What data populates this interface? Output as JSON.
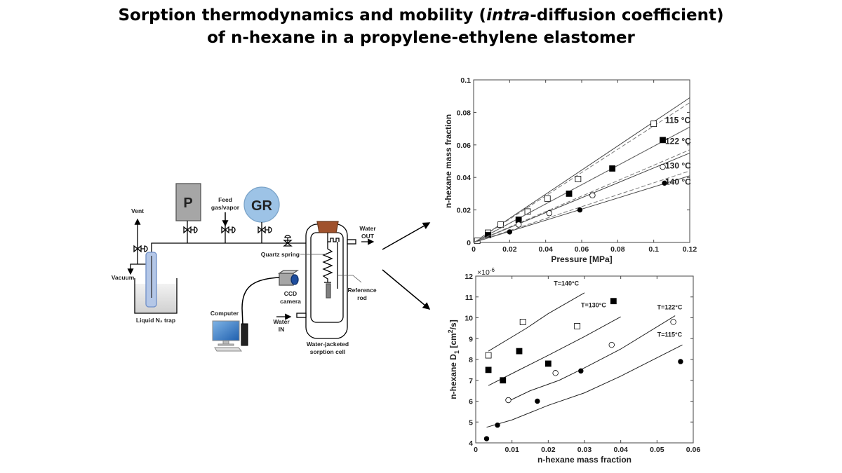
{
  "title": {
    "line1_a": "Sorption thermodynamics and mobility (",
    "line1_italic": "intra",
    "line1_b": "-diffusion coefficient)",
    "line2": "of n-hexane in a propylene-ethylene elastomer"
  },
  "diagram": {
    "pressure_box": "P",
    "gas_reservoir": "GR",
    "vent": "Vent",
    "vacuum": "Vacuum",
    "feed_line1": "Feed",
    "feed_line2": "gas/vapor",
    "trap": "Liquid N₂ trap",
    "water_out_1": "Water",
    "water_out_2": "OUT",
    "water_in_1": "Water",
    "water_in_2": "IN",
    "quartz_spring": "Quartz spring",
    "reference_1": "Reference",
    "reference_2": "rod",
    "ccd_1": "CCD",
    "ccd_2": "camera",
    "computer": "Computer",
    "cell_1": "Water-jacketed",
    "cell_2": "sorption cell",
    "colors": {
      "reservoir": "#9dc3e6",
      "pressure": "#a6a6a6",
      "cap": "#a0522d",
      "tube": "#b4c7e7"
    }
  },
  "chart_data": [
    {
      "type": "scatter",
      "xlabel": "Pressure [MPa]",
      "ylabel": "n-hexane mass fraction",
      "xlim": [
        0,
        0.12
      ],
      "ylim": [
        0,
        0.1
      ],
      "xticks": [
        "0",
        "0.02",
        "0.04",
        "0.06",
        "0.08",
        "0.1",
        "0.12"
      ],
      "yticks": [
        "0",
        "0.02",
        "0.04",
        "0.06",
        "0.08",
        "0.1"
      ],
      "grid": false,
      "series": [
        {
          "name": "115 °C",
          "marker": "open-square",
          "x": [
            0.002,
            0.008,
            0.015,
            0.03,
            0.041,
            0.058,
            0.1
          ],
          "y": [
            0.001,
            0.006,
            0.011,
            0.019,
            0.027,
            0.039,
            0.073
          ],
          "solid_fit_end": 0.089,
          "dashed_fit_end": 0.086
        },
        {
          "name": "122 °C",
          "marker": "filled-square",
          "x": [
            0.008,
            0.025,
            0.053,
            0.077,
            0.105
          ],
          "y": [
            0.0045,
            0.014,
            0.03,
            0.0455,
            0.063
          ],
          "solid_fit_end": 0.071,
          "dashed_fit_end": 0.071
        },
        {
          "name": "130 °C",
          "marker": "open-circle",
          "x": [
            0.025,
            0.042,
            0.066,
            0.105
          ],
          "y": [
            0.011,
            0.018,
            0.029,
            0.0465
          ],
          "solid_fit_end": 0.055,
          "dashed_fit_end": 0.057
        },
        {
          "name": "140 °C",
          "marker": "filled-circle",
          "x": [
            0.02,
            0.059,
            0.106
          ],
          "y": [
            0.0065,
            0.02,
            0.0365
          ],
          "solid_fit_end": 0.041,
          "dashed_fit_end": 0.044
        }
      ]
    },
    {
      "type": "scatter",
      "xlabel": "n-hexane mass fraction",
      "ylabel_main": "n-hexane D",
      "ylabel_sub": "1",
      "ylabel_unit_a": " [cm",
      "ylabel_sup": "2",
      "ylabel_unit_b": "/s]",
      "y_multiplier": "×10",
      "y_multiplier_exp": "-6",
      "xlim": [
        0,
        0.06
      ],
      "ylim": [
        4,
        12
      ],
      "xticks": [
        "0",
        "0.01",
        "0.02",
        "0.03",
        "0.04",
        "0.05",
        "0.06"
      ],
      "yticks": [
        "4",
        "5",
        "6",
        "7",
        "8",
        "9",
        "10",
        "11",
        "12"
      ],
      "grid": false,
      "points": [
        {
          "marker": "open-square",
          "x": [
            0.0035,
            0.013,
            0.028
          ],
          "y": [
            8.2,
            9.8,
            9.6
          ]
        },
        {
          "marker": "filled-square",
          "x": [
            0.0035,
            0.0075,
            0.012,
            0.02,
            0.038
          ],
          "y": [
            7.5,
            7.0,
            8.4,
            7.8,
            10.8
          ]
        },
        {
          "marker": "open-circle",
          "x": [
            0.009,
            0.022,
            0.0375,
            0.0545
          ],
          "y": [
            6.05,
            7.35,
            8.7,
            9.8
          ]
        },
        {
          "marker": "filled-circle",
          "x": [
            0.003,
            0.006,
            0.017,
            0.029,
            0.0565
          ],
          "y": [
            4.2,
            4.85,
            6.0,
            7.45,
            7.9
          ]
        }
      ],
      "lines": [
        {
          "name": "T=140°C",
          "x": [
            0.0035,
            0.014,
            0.02,
            0.03
          ],
          "y": [
            8.4,
            9.5,
            10.2,
            11.2
          ]
        },
        {
          "name": "T=130°C",
          "x": [
            0.0035,
            0.012,
            0.02,
            0.03,
            0.04
          ],
          "y": [
            6.75,
            7.5,
            8.2,
            9.1,
            10.05
          ]
        },
        {
          "name": "T=122°C",
          "x": [
            0.009,
            0.015,
            0.023,
            0.03,
            0.04,
            0.055
          ],
          "y": [
            6.0,
            6.5,
            7.0,
            7.6,
            8.5,
            10.1
          ]
        },
        {
          "name": "T=115°C",
          "x": [
            0.003,
            0.01,
            0.02,
            0.03,
            0.04,
            0.057
          ],
          "y": [
            4.75,
            5.1,
            5.8,
            6.4,
            7.2,
            8.7
          ]
        }
      ]
    }
  ]
}
